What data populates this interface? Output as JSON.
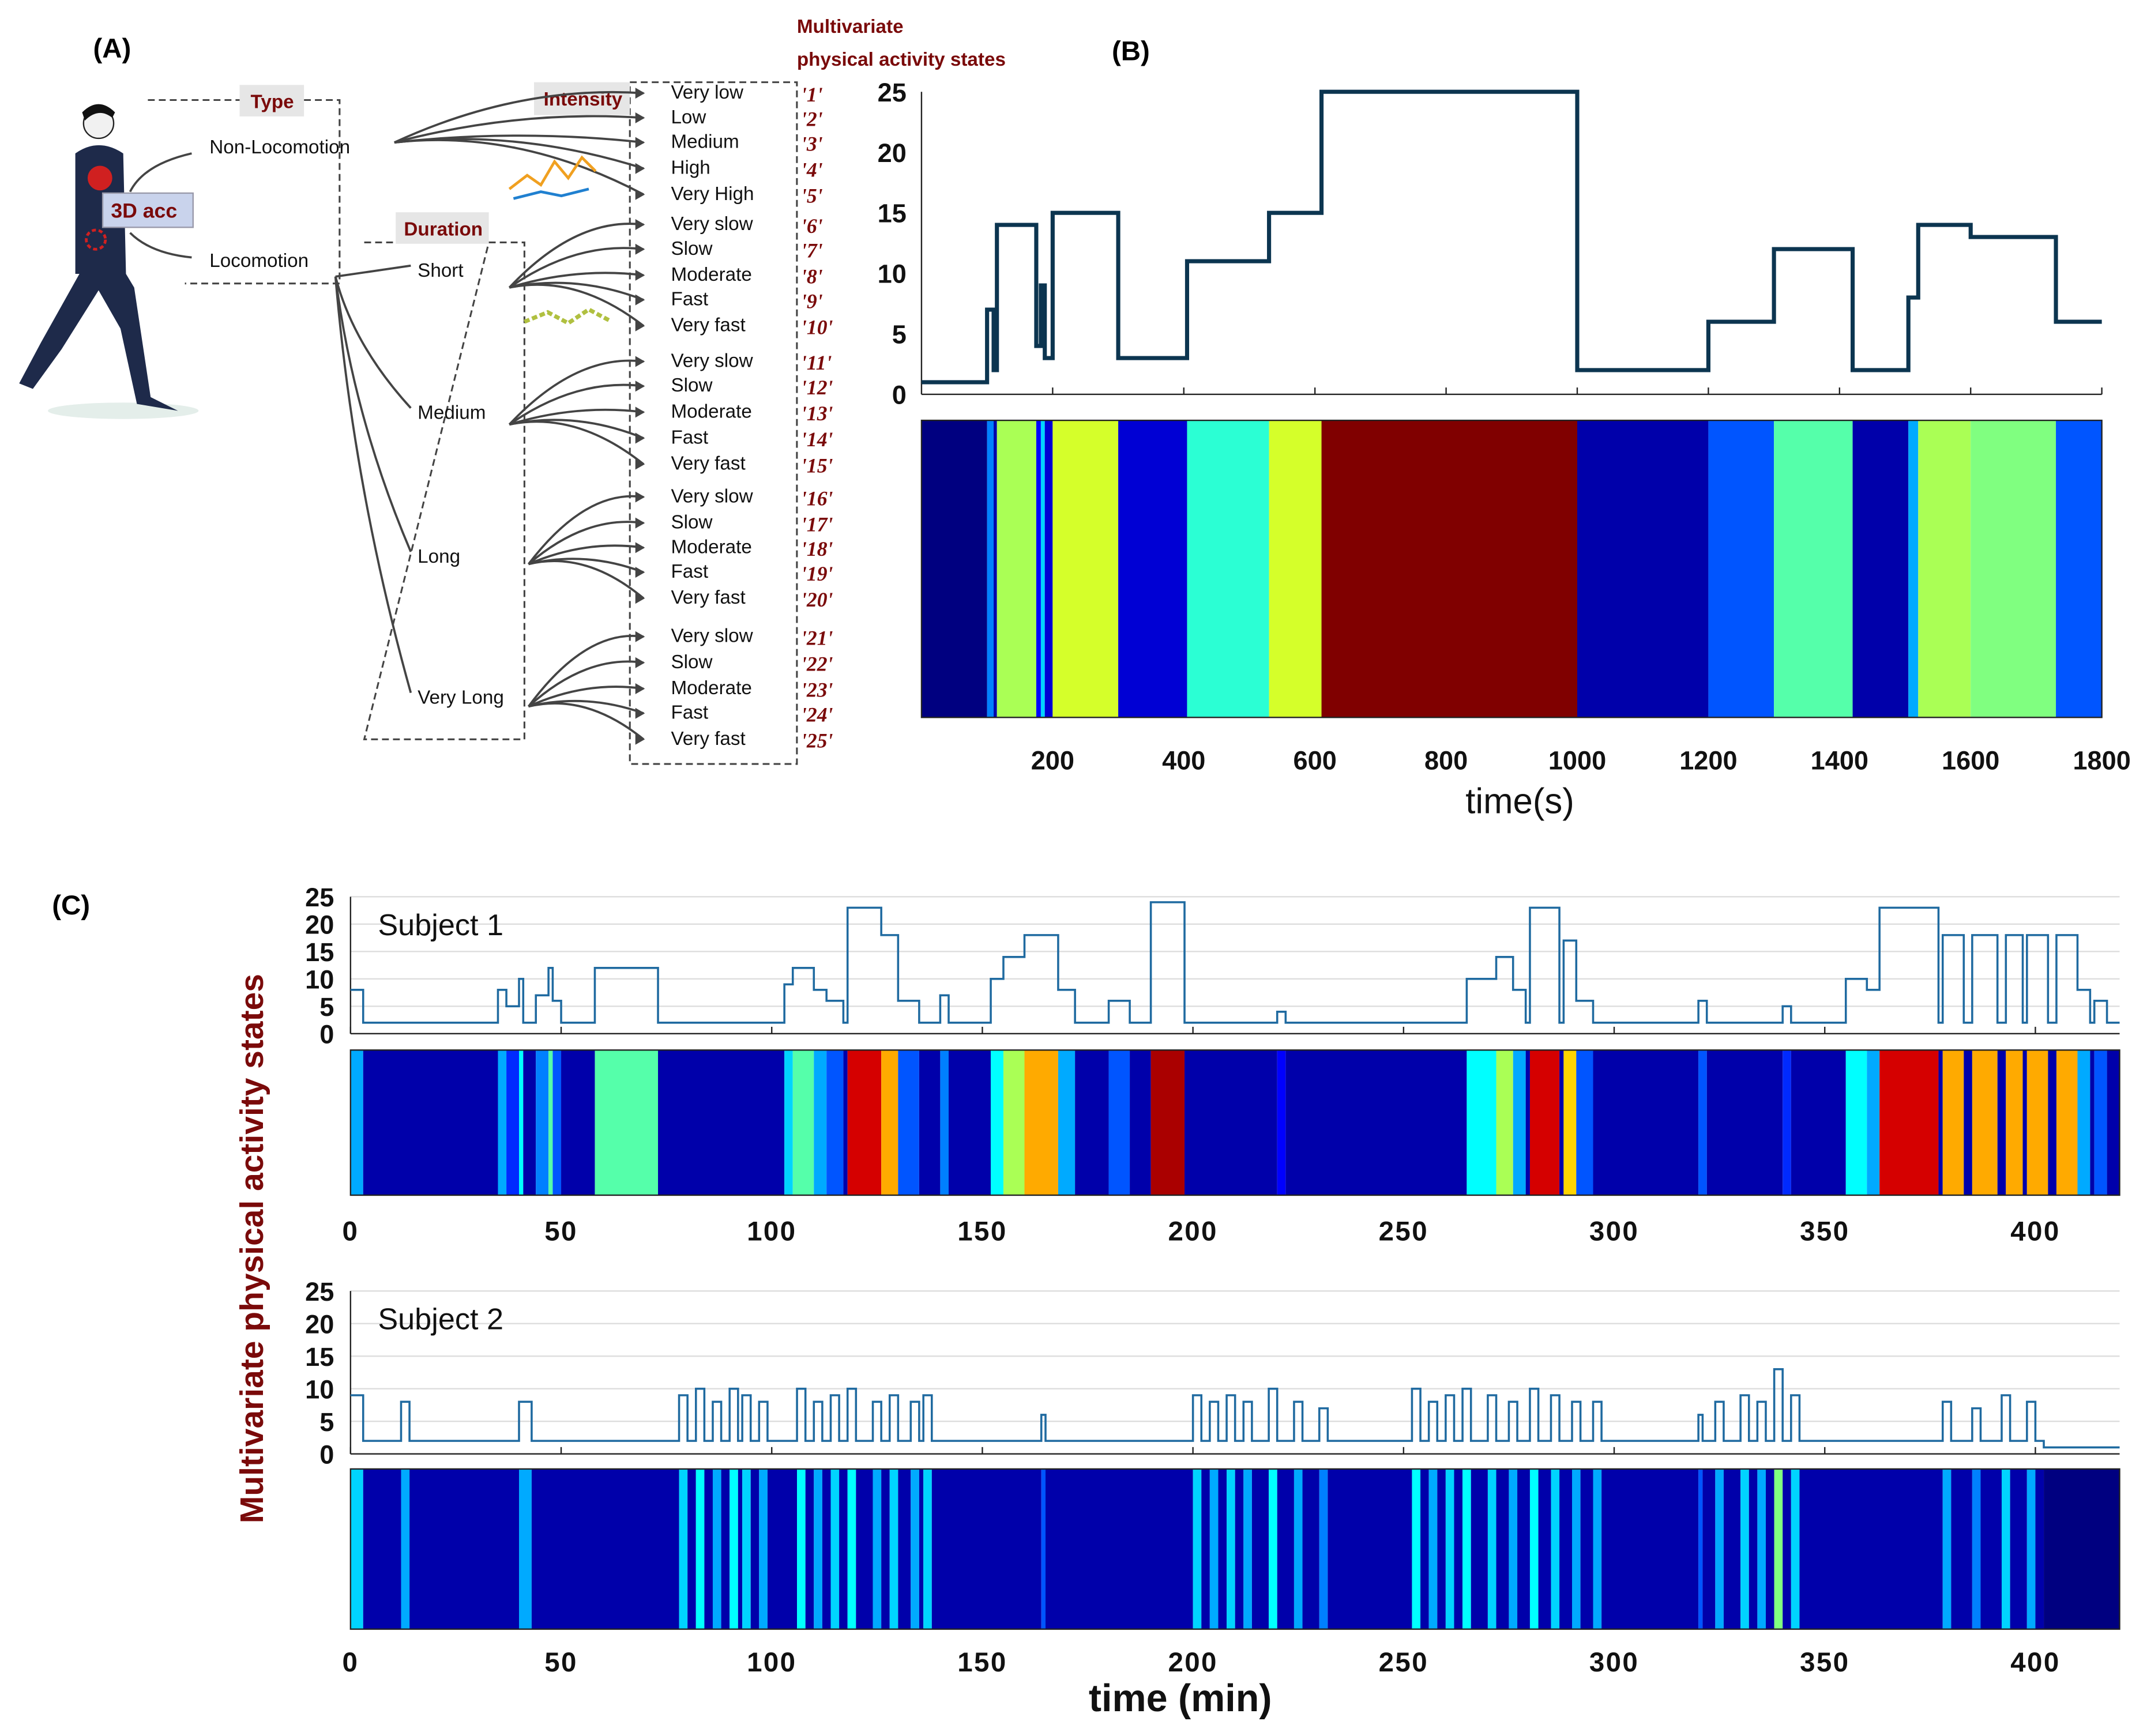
{
  "panel_a": {
    "label": "(A)",
    "title_line1": "Multivariate",
    "title_line2": "physical activity states",
    "sensor": "3D acc",
    "type_label": "Type",
    "types": [
      "Non-Locomotion",
      "Locomotion"
    ],
    "intensity_label": "Intensity",
    "intensities": [
      "Very low",
      "Low",
      "Medium",
      "High",
      "Very High"
    ],
    "duration_label": "Duration",
    "durations": [
      "Short",
      "Medium",
      "Long",
      "Very Long"
    ],
    "speeds": [
      "Very slow",
      "Slow",
      "Moderate",
      "Fast",
      "Very fast"
    ],
    "state_codes": [
      "'1'",
      "'2'",
      "'3'",
      "'4'",
      "'5'",
      "'6'",
      "'7'",
      "'8'",
      "'9'",
      "'10'",
      "'11'",
      "'12'",
      "'13'",
      "'14'",
      "'15'",
      "'16'",
      "'17'",
      "'18'",
      "'19'",
      "'20'",
      "'21'",
      "'22'",
      "'23'",
      "'24'",
      "'25'"
    ]
  },
  "chart_data": [
    {
      "type": "line",
      "panel": "(B)",
      "xlabel": "time(s)",
      "xlim": [
        0,
        1800
      ],
      "ylim": [
        0,
        25
      ],
      "yticks": [
        0,
        5,
        10,
        15,
        20,
        25
      ],
      "xticks": [
        200,
        400,
        600,
        800,
        1000,
        1200,
        1400,
        1600,
        1800
      ],
      "colormap": "jet",
      "segments": [
        [
          0,
          100,
          1
        ],
        [
          100,
          110,
          7
        ],
        [
          110,
          115,
          2
        ],
        [
          115,
          175,
          14
        ],
        [
          175,
          182,
          4
        ],
        [
          182,
          188,
          9
        ],
        [
          188,
          200,
          3
        ],
        [
          200,
          300,
          15
        ],
        [
          300,
          405,
          3
        ],
        [
          405,
          530,
          11
        ],
        [
          530,
          610,
          15
        ],
        [
          610,
          1000,
          25
        ],
        [
          1000,
          1200,
          2
        ],
        [
          1200,
          1300,
          6
        ],
        [
          1300,
          1420,
          12
        ],
        [
          1420,
          1505,
          2
        ],
        [
          1505,
          1520,
          8
        ],
        [
          1520,
          1600,
          14
        ],
        [
          1600,
          1730,
          13
        ],
        [
          1730,
          1800,
          6
        ]
      ]
    },
    {
      "type": "line",
      "panel": "(C)",
      "title": "Subject 1",
      "ylabel": "Multivariate physical activity states",
      "xlim": [
        0,
        420
      ],
      "ylim": [
        0,
        25
      ],
      "yticks": [
        0,
        5,
        10,
        15,
        20,
        25
      ],
      "xticks": [
        0,
        50,
        100,
        150,
        200,
        250,
        300,
        350,
        400
      ],
      "baseline": 2,
      "segments": [
        [
          0,
          3,
          8
        ],
        [
          35,
          37,
          8
        ],
        [
          37,
          40,
          5
        ],
        [
          40,
          41,
          10
        ],
        [
          44,
          47,
          7
        ],
        [
          47,
          48,
          12
        ],
        [
          48,
          50,
          6
        ],
        [
          58,
          73,
          12
        ],
        [
          103,
          105,
          9
        ],
        [
          105,
          110,
          12
        ],
        [
          110,
          113,
          8
        ],
        [
          113,
          117,
          6
        ],
        [
          118,
          126,
          23
        ],
        [
          126,
          130,
          18
        ],
        [
          130,
          135,
          6
        ],
        [
          140,
          142,
          7
        ],
        [
          152,
          155,
          10
        ],
        [
          155,
          160,
          14
        ],
        [
          160,
          168,
          18
        ],
        [
          168,
          172,
          8
        ],
        [
          180,
          185,
          6
        ],
        [
          190,
          198,
          24
        ],
        [
          220,
          222,
          4
        ],
        [
          265,
          272,
          10
        ],
        [
          272,
          276,
          14
        ],
        [
          276,
          279,
          8
        ],
        [
          280,
          287,
          23
        ],
        [
          288,
          291,
          17
        ],
        [
          291,
          295,
          6
        ],
        [
          320,
          322,
          6
        ],
        [
          340,
          342,
          5
        ],
        [
          355,
          360,
          10
        ],
        [
          360,
          363,
          8
        ],
        [
          363,
          377,
          23
        ],
        [
          378,
          383,
          18
        ],
        [
          385,
          391,
          18
        ],
        [
          393,
          397,
          18
        ],
        [
          398,
          403,
          18
        ],
        [
          405,
          410,
          18
        ],
        [
          410,
          413,
          8
        ],
        [
          414,
          417,
          6
        ]
      ]
    },
    {
      "type": "line",
      "panel": "(C)",
      "title": "Subject 2",
      "xlabel": "time (min)",
      "xlim": [
        0,
        420
      ],
      "ylim": [
        0,
        25
      ],
      "yticks": [
        0,
        5,
        10,
        15,
        20,
        25
      ],
      "xticks": [
        0,
        50,
        100,
        150,
        200,
        250,
        300,
        350,
        400
      ],
      "baseline": 2,
      "segments": [
        [
          0,
          3,
          9
        ],
        [
          12,
          14,
          8
        ],
        [
          40,
          43,
          8
        ],
        [
          78,
          80,
          9
        ],
        [
          82,
          84,
          10
        ],
        [
          86,
          88,
          8
        ],
        [
          90,
          92,
          10
        ],
        [
          93,
          95,
          9
        ],
        [
          97,
          99,
          8
        ],
        [
          106,
          108,
          10
        ],
        [
          110,
          112,
          8
        ],
        [
          114,
          116,
          9
        ],
        [
          118,
          120,
          10
        ],
        [
          124,
          126,
          8
        ],
        [
          128,
          130,
          9
        ],
        [
          133,
          135,
          8
        ],
        [
          136,
          138,
          9
        ],
        [
          164,
          165,
          6
        ],
        [
          200,
          202,
          9
        ],
        [
          204,
          206,
          8
        ],
        [
          208,
          210,
          9
        ],
        [
          212,
          214,
          8
        ],
        [
          218,
          220,
          10
        ],
        [
          224,
          226,
          8
        ],
        [
          230,
          232,
          7
        ],
        [
          252,
          254,
          10
        ],
        [
          256,
          258,
          8
        ],
        [
          260,
          262,
          9
        ],
        [
          264,
          266,
          10
        ],
        [
          270,
          272,
          9
        ],
        [
          275,
          277,
          8
        ],
        [
          280,
          282,
          10
        ],
        [
          285,
          287,
          9
        ],
        [
          290,
          292,
          8
        ],
        [
          295,
          297,
          8
        ],
        [
          320,
          321,
          6
        ],
        [
          324,
          326,
          8
        ],
        [
          330,
          332,
          9
        ],
        [
          334,
          336,
          8
        ],
        [
          338,
          340,
          13
        ],
        [
          342,
          344,
          9
        ],
        [
          378,
          380,
          8
        ],
        [
          385,
          387,
          7
        ],
        [
          392,
          394,
          9
        ],
        [
          398,
          400,
          8
        ],
        [
          402,
          420,
          1
        ]
      ]
    }
  ]
}
